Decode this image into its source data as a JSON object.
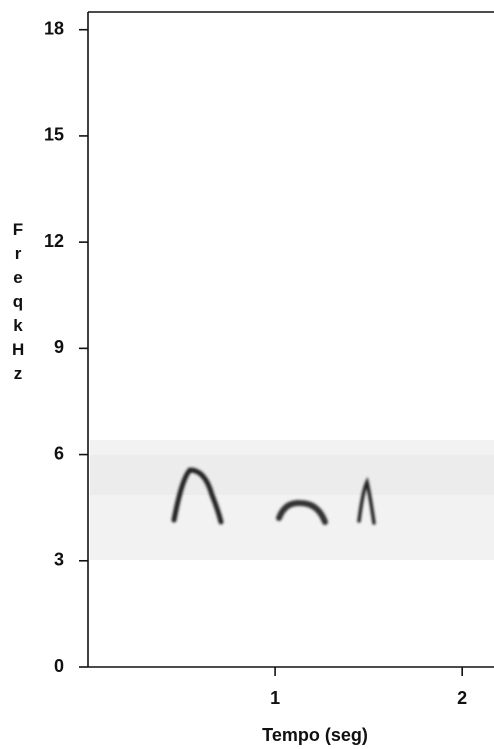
{
  "chart_data": {
    "type": "spectrogram",
    "xlabel": "Tempo (seg)",
    "ylabel": "Freq kHz",
    "xlim": [
      0,
      2.17
    ],
    "xticks": [
      1,
      2
    ],
    "ylim": [
      0,
      18.5
    ],
    "yticks": [
      0,
      3,
      6,
      9,
      12,
      15,
      18
    ]
  }
}
